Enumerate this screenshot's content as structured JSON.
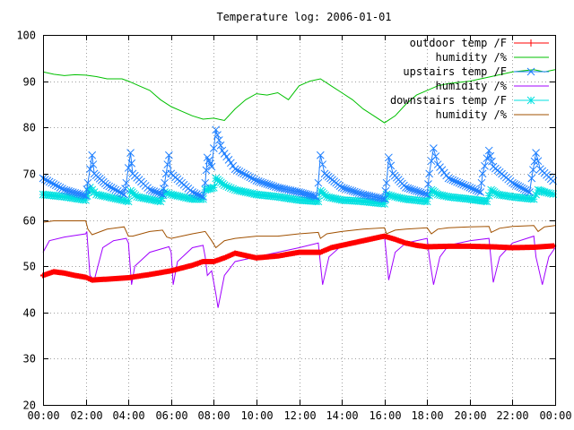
{
  "chart_data": {
    "type": "line",
    "title": "Temperature log: 2006-01-01",
    "xlabel": "",
    "ylabel": "",
    "xlim": [
      0,
      24
    ],
    "ylim": [
      20,
      100
    ],
    "grid": true,
    "legend_position": "top-right",
    "x_ticks": [
      {
        "value": 0,
        "label": "00:00"
      },
      {
        "value": 2,
        "label": "02:00"
      },
      {
        "value": 4,
        "label": "04:00"
      },
      {
        "value": 6,
        "label": "06:00"
      },
      {
        "value": 8,
        "label": "08:00"
      },
      {
        "value": 10,
        "label": "10:00"
      },
      {
        "value": 12,
        "label": "12:00"
      },
      {
        "value": 14,
        "label": "14:00"
      },
      {
        "value": 16,
        "label": "16:00"
      },
      {
        "value": 18,
        "label": "18:00"
      },
      {
        "value": 20,
        "label": "20:00"
      },
      {
        "value": 22,
        "label": "22:00"
      },
      {
        "value": 24,
        "label": "00:00"
      }
    ],
    "y_ticks": [
      {
        "value": 20,
        "label": "20"
      },
      {
        "value": 30,
        "label": "30"
      },
      {
        "value": 40,
        "label": "40"
      },
      {
        "value": 50,
        "label": "50"
      },
      {
        "value": 60,
        "label": "60"
      },
      {
        "value": 70,
        "label": "70"
      },
      {
        "value": 80,
        "label": "80"
      },
      {
        "value": 90,
        "label": "90"
      },
      {
        "value": 100,
        "label": "100"
      }
    ],
    "series": [
      {
        "name": "outdoor temp /F",
        "color": "#ff0000",
        "marker": "plus",
        "points": [
          [
            0,
            48
          ],
          [
            0.5,
            48.8
          ],
          [
            1,
            48.5
          ],
          [
            1.5,
            48
          ],
          [
            2,
            47.6
          ],
          [
            2.3,
            47
          ],
          [
            3,
            47.2
          ],
          [
            4,
            47.5
          ],
          [
            5,
            48.2
          ],
          [
            6,
            49
          ],
          [
            7,
            50.2
          ],
          [
            7.5,
            51
          ],
          [
            8,
            51
          ],
          [
            8.5,
            51.8
          ],
          [
            9,
            52.8
          ],
          [
            9.5,
            52.3
          ],
          [
            10,
            51.8
          ],
          [
            11,
            52.2
          ],
          [
            12,
            53
          ],
          [
            13,
            53
          ],
          [
            13.5,
            54
          ],
          [
            14,
            54.5
          ],
          [
            15,
            55.5
          ],
          [
            15.5,
            56
          ],
          [
            16,
            56.5
          ],
          [
            16.5,
            55.8
          ],
          [
            17,
            55
          ],
          [
            17.5,
            54.5
          ],
          [
            18,
            54.2
          ],
          [
            19,
            54.3
          ],
          [
            20,
            54.3
          ],
          [
            21,
            54.2
          ],
          [
            22,
            54
          ],
          [
            23,
            54.1
          ],
          [
            24,
            54.4
          ]
        ]
      },
      {
        "name": "humidity /%",
        "color": "#00c000",
        "marker": "none",
        "points": [
          [
            0,
            92
          ],
          [
            0.5,
            91.5
          ],
          [
            1,
            91.2
          ],
          [
            1.5,
            91.4
          ],
          [
            2,
            91.3
          ],
          [
            2.5,
            91
          ],
          [
            3,
            90.5
          ],
          [
            3.7,
            90.5
          ],
          [
            4,
            90
          ],
          [
            4.5,
            89
          ],
          [
            5,
            88
          ],
          [
            5.5,
            86
          ],
          [
            6,
            84.5
          ],
          [
            6.5,
            83.5
          ],
          [
            7,
            82.5
          ],
          [
            7.5,
            81.8
          ],
          [
            8,
            82
          ],
          [
            8.5,
            81.5
          ],
          [
            9,
            84
          ],
          [
            9.5,
            86
          ],
          [
            10,
            87.3
          ],
          [
            10.5,
            87
          ],
          [
            11,
            87.5
          ],
          [
            11.5,
            86
          ],
          [
            12,
            89
          ],
          [
            12.5,
            90
          ],
          [
            13,
            90.5
          ],
          [
            13.5,
            89
          ],
          [
            14,
            87.5
          ],
          [
            14.5,
            86
          ],
          [
            15,
            84
          ],
          [
            15.5,
            82.5
          ],
          [
            16,
            81
          ],
          [
            16.5,
            82.5
          ],
          [
            17,
            85
          ],
          [
            17.5,
            87
          ],
          [
            18,
            88
          ],
          [
            18.5,
            89
          ],
          [
            19,
            89.5
          ],
          [
            20,
            90
          ],
          [
            21,
            91
          ],
          [
            22,
            92
          ],
          [
            23,
            92.5
          ],
          [
            23.5,
            92
          ],
          [
            24,
            92.5
          ]
        ]
      },
      {
        "name": "upstairs temp /F",
        "color": "#1e7fff",
        "marker": "cross",
        "points": [
          [
            0,
            69
          ],
          [
            1,
            66.5
          ],
          [
            2,
            65.2
          ],
          [
            2.1,
            68
          ],
          [
            2.3,
            74
          ],
          [
            2.4,
            70
          ],
          [
            3,
            67.5
          ],
          [
            3.8,
            65.5
          ],
          [
            3.9,
            68
          ],
          [
            4.1,
            74.5
          ],
          [
            4.2,
            70
          ],
          [
            5,
            66.5
          ],
          [
            5.6,
            65.5
          ],
          [
            5.7,
            68
          ],
          [
            5.9,
            74
          ],
          [
            6,
            70
          ],
          [
            7,
            66
          ],
          [
            7.5,
            65
          ],
          [
            7.6,
            68
          ],
          [
            7.7,
            73.5
          ],
          [
            7.9,
            71.5
          ],
          [
            8.1,
            79.5
          ],
          [
            8.4,
            75
          ],
          [
            9,
            71
          ],
          [
            10,
            68.5
          ],
          [
            11,
            67
          ],
          [
            12,
            66
          ],
          [
            12.8,
            65
          ],
          [
            12.9,
            68
          ],
          [
            13,
            74
          ],
          [
            13.2,
            70
          ],
          [
            14,
            67
          ],
          [
            15,
            65.5
          ],
          [
            16,
            64.5
          ],
          [
            16.1,
            68
          ],
          [
            16.2,
            73.5
          ],
          [
            16.4,
            70
          ],
          [
            17,
            67
          ],
          [
            18,
            65.5
          ],
          [
            18.1,
            70
          ],
          [
            18.3,
            75.5
          ],
          [
            18.5,
            72
          ],
          [
            19,
            69
          ],
          [
            20.5,
            66
          ],
          [
            20.6,
            70
          ],
          [
            20.9,
            75
          ],
          [
            21.1,
            71.5
          ],
          [
            22,
            68
          ],
          [
            22.8,
            66
          ],
          [
            22.9,
            69
          ],
          [
            23.1,
            74.5
          ],
          [
            23.3,
            71
          ],
          [
            24,
            68
          ]
        ]
      },
      {
        "name": "humidity /%",
        "color": "#a000ff",
        "marker": "none",
        "points": [
          [
            0,
            53
          ],
          [
            0.3,
            55.5
          ],
          [
            1,
            56.3
          ],
          [
            2,
            57
          ],
          [
            2.05,
            57.5
          ],
          [
            2.2,
            48
          ],
          [
            2.4,
            47
          ],
          [
            2.8,
            54
          ],
          [
            3.3,
            55.5
          ],
          [
            3.9,
            56
          ],
          [
            4,
            55
          ],
          [
            4.15,
            46
          ],
          [
            4.3,
            50
          ],
          [
            5,
            53
          ],
          [
            5.9,
            54.2
          ],
          [
            6,
            53
          ],
          [
            6.1,
            46
          ],
          [
            6.3,
            51
          ],
          [
            7,
            54
          ],
          [
            7.5,
            54.5
          ],
          [
            7.6,
            52
          ],
          [
            7.7,
            48
          ],
          [
            7.9,
            49
          ],
          [
            8.1,
            44
          ],
          [
            8.2,
            41
          ],
          [
            8.5,
            48
          ],
          [
            9,
            51
          ],
          [
            10,
            52
          ],
          [
            11,
            53
          ],
          [
            12,
            54
          ],
          [
            12.9,
            55
          ],
          [
            13.1,
            46
          ],
          [
            13.4,
            52
          ],
          [
            14,
            54.5
          ],
          [
            15,
            55.5
          ],
          [
            16,
            56.5
          ],
          [
            16.1,
            52
          ],
          [
            16.2,
            47
          ],
          [
            16.5,
            53
          ],
          [
            17,
            55
          ],
          [
            18,
            56
          ],
          [
            18.1,
            52
          ],
          [
            18.3,
            46
          ],
          [
            18.6,
            52
          ],
          [
            19,
            54.5
          ],
          [
            20,
            55.5
          ],
          [
            20.9,
            56
          ],
          [
            21.1,
            46.5
          ],
          [
            21.4,
            52
          ],
          [
            22,
            55
          ],
          [
            23,
            56.5
          ],
          [
            23.1,
            52
          ],
          [
            23.4,
            46
          ],
          [
            23.7,
            52
          ],
          [
            24,
            54
          ]
        ]
      },
      {
        "name": "downstairs temp /F",
        "color": "#00e0e0",
        "marker": "star",
        "points": [
          [
            0,
            65.5
          ],
          [
            1,
            65
          ],
          [
            2,
            64.3
          ],
          [
            2.2,
            67
          ],
          [
            2.5,
            65.5
          ],
          [
            3.5,
            64.5
          ],
          [
            4,
            64
          ],
          [
            4.1,
            66.3
          ],
          [
            4.4,
            65
          ],
          [
            5.5,
            64
          ],
          [
            5.7,
            66
          ],
          [
            6,
            65.5
          ],
          [
            7,
            64.5
          ],
          [
            7.5,
            64.5
          ],
          [
            7.6,
            66.5
          ],
          [
            8,
            67
          ],
          [
            8.1,
            69
          ],
          [
            8.5,
            67.5
          ],
          [
            9,
            66.5
          ],
          [
            10,
            65.5
          ],
          [
            11,
            65
          ],
          [
            12,
            64.3
          ],
          [
            12.9,
            64
          ],
          [
            13,
            66.3
          ],
          [
            13.3,
            65
          ],
          [
            14,
            64.3
          ],
          [
            15,
            64
          ],
          [
            16,
            63.5
          ],
          [
            16.1,
            65.5
          ],
          [
            16.5,
            65
          ],
          [
            17,
            64.5
          ],
          [
            18,
            64
          ],
          [
            18.2,
            66.5
          ],
          [
            18.5,
            65.5
          ],
          [
            19,
            65
          ],
          [
            20,
            64.5
          ],
          [
            20.8,
            64
          ],
          [
            21,
            66.5
          ],
          [
            21.3,
            65.5
          ],
          [
            22,
            65
          ],
          [
            23,
            64.5
          ],
          [
            23.2,
            66.5
          ],
          [
            23.5,
            66
          ],
          [
            24,
            65.5
          ]
        ]
      },
      {
        "name": "humidity /%",
        "color": "#a05000",
        "marker": "none",
        "points": [
          [
            0,
            59.5
          ],
          [
            0.5,
            59.8
          ],
          [
            1,
            59.8
          ],
          [
            2,
            59.8
          ],
          [
            2.1,
            58
          ],
          [
            2.3,
            56.8
          ],
          [
            3,
            58
          ],
          [
            3.8,
            58.5
          ],
          [
            4,
            56.5
          ],
          [
            4.2,
            56.5
          ],
          [
            5,
            57.5
          ],
          [
            5.6,
            57.8
          ],
          [
            5.8,
            56.3
          ],
          [
            6,
            56
          ],
          [
            7,
            57
          ],
          [
            7.6,
            57.5
          ],
          [
            7.9,
            55.5
          ],
          [
            8.1,
            54
          ],
          [
            8.5,
            55.5
          ],
          [
            9,
            56
          ],
          [
            10,
            56.5
          ],
          [
            11,
            56.5
          ],
          [
            12,
            57
          ],
          [
            12.9,
            57.3
          ],
          [
            13,
            56
          ],
          [
            13.3,
            57
          ],
          [
            14,
            57.5
          ],
          [
            15,
            58
          ],
          [
            16,
            58.3
          ],
          [
            16.1,
            57
          ],
          [
            16.5,
            57.8
          ],
          [
            17,
            58
          ],
          [
            18,
            58.3
          ],
          [
            18.2,
            57
          ],
          [
            18.5,
            58
          ],
          [
            19,
            58.3
          ],
          [
            20,
            58.5
          ],
          [
            20.9,
            58.6
          ],
          [
            21,
            57.3
          ],
          [
            21.4,
            58.2
          ],
          [
            22,
            58.6
          ],
          [
            23,
            58.8
          ],
          [
            23.2,
            57.5
          ],
          [
            23.5,
            58.5
          ],
          [
            24,
            58.8
          ]
        ]
      }
    ]
  }
}
